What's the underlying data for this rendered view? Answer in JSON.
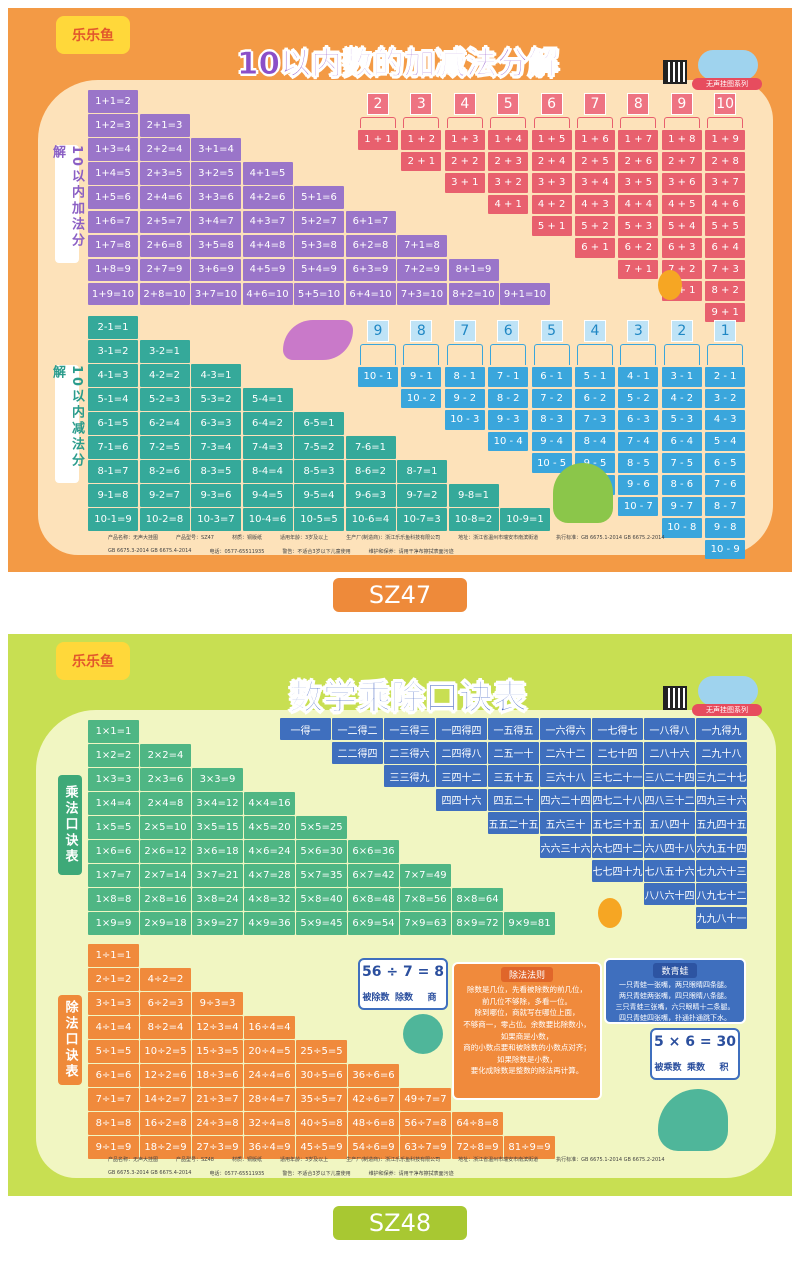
{
  "poster_1": {
    "brand": "乐乐鱼",
    "title": "10以内数的加减法分解",
    "series_badge": "无声挂图系列",
    "addition_label": "10以内加法分解",
    "subtraction_label": "10以内减法分解",
    "addition_rows": [
      [
        "1+1=2"
      ],
      [
        "1+2=3",
        "2+1=3"
      ],
      [
        "1+3=4",
        "2+2=4",
        "3+1=4"
      ],
      [
        "1+4=5",
        "2+3=5",
        "3+2=5",
        "4+1=5"
      ],
      [
        "1+5=6",
        "2+4=6",
        "3+3=6",
        "4+2=6",
        "5+1=6"
      ],
      [
        "1+6=7",
        "2+5=7",
        "3+4=7",
        "4+3=7",
        "5+2=7",
        "6+1=7"
      ],
      [
        "1+7=8",
        "2+6=8",
        "3+5=8",
        "4+4=8",
        "5+3=8",
        "6+2=8",
        "7+1=8"
      ],
      [
        "1+8=9",
        "2+7=9",
        "3+6=9",
        "4+5=9",
        "5+4=9",
        "6+3=9",
        "7+2=9",
        "8+1=9"
      ],
      [
        "1+9=10",
        "2+8=10",
        "3+7=10",
        "4+6=10",
        "5+5=10",
        "6+4=10",
        "7+3=10",
        "8+2=10",
        "9+1=10"
      ]
    ],
    "subtraction_rows": [
      [
        "2-1=1"
      ],
      [
        "3-1=2",
        "3-2=1"
      ],
      [
        "4-1=3",
        "4-2=2",
        "4-3=1"
      ],
      [
        "5-1=4",
        "5-2=3",
        "5-3=2",
        "5-4=1"
      ],
      [
        "6-1=5",
        "6-2=4",
        "6-3=3",
        "6-4=2",
        "6-5=1"
      ],
      [
        "7-1=6",
        "7-2=5",
        "7-3=4",
        "7-4=3",
        "7-5=2",
        "7-6=1"
      ],
      [
        "8-1=7",
        "8-2=6",
        "8-3=5",
        "8-4=4",
        "8-5=3",
        "8-6=2",
        "8-7=1"
      ],
      [
        "9-1=8",
        "9-2=7",
        "9-3=6",
        "9-4=5",
        "9-5=4",
        "9-6=3",
        "9-7=2",
        "9-8=1"
      ],
      [
        "10-1=9",
        "10-2=8",
        "10-3=7",
        "10-4=6",
        "10-5=5",
        "10-6=4",
        "10-7=3",
        "10-8=2",
        "10-9=1"
      ]
    ],
    "addition_decompositions": [
      {
        "number": "2",
        "parts": [
          "1 + 1"
        ]
      },
      {
        "number": "3",
        "parts": [
          "1 + 2",
          "2 + 1"
        ]
      },
      {
        "number": "4",
        "parts": [
          "1 + 3",
          "2 + 2",
          "3 + 1"
        ]
      },
      {
        "number": "5",
        "parts": [
          "1 + 4",
          "2 + 3",
          "3 + 2",
          "4 + 1"
        ]
      },
      {
        "number": "6",
        "parts": [
          "1 + 5",
          "2 + 4",
          "3 + 3",
          "4 + 2",
          "5 + 1"
        ]
      },
      {
        "number": "7",
        "parts": [
          "1 + 6",
          "2 + 5",
          "3 + 4",
          "4 + 3",
          "5 + 2",
          "6 + 1"
        ]
      },
      {
        "number": "8",
        "parts": [
          "1 + 7",
          "2 + 6",
          "3 + 5",
          "4 + 4",
          "5 + 3",
          "6 + 2",
          "7 + 1"
        ]
      },
      {
        "number": "9",
        "parts": [
          "1 + 8",
          "2 + 7",
          "3 + 6",
          "4 + 5",
          "5 + 4",
          "6 + 3",
          "7 + 2",
          "8 + 1"
        ]
      },
      {
        "number": "10",
        "parts": [
          "1 + 9",
          "2 + 8",
          "3 + 7",
          "4 + 6",
          "5 + 5",
          "6 + 4",
          "7 + 3",
          "8 + 2",
          "9 + 1"
        ]
      }
    ],
    "subtraction_decompositions": [
      {
        "number": "9",
        "parts": [
          "10 - 1"
        ]
      },
      {
        "number": "8",
        "parts": [
          "9 - 1",
          "10 - 2"
        ]
      },
      {
        "number": "7",
        "parts": [
          "8 - 1",
          "9 - 2",
          "10 - 3"
        ]
      },
      {
        "number": "6",
        "parts": [
          "7 - 1",
          "8 - 2",
          "9 - 3",
          "10 - 4"
        ]
      },
      {
        "number": "5",
        "parts": [
          "6 - 1",
          "7 - 2",
          "8 - 3",
          "9 - 4",
          "10 - 5"
        ]
      },
      {
        "number": "4",
        "parts": [
          "5 - 1",
          "6 - 2",
          "7 - 3",
          "8 - 4",
          "9 - 5",
          "10 - 6"
        ]
      },
      {
        "number": "3",
        "parts": [
          "4 - 1",
          "5 - 2",
          "6 - 3",
          "7 - 4",
          "8 - 5",
          "9 - 6",
          "10 - 7"
        ]
      },
      {
        "number": "2",
        "parts": [
          "3 - 1",
          "4 - 2",
          "5 - 3",
          "6 - 4",
          "7 - 5",
          "8 - 6",
          "9 - 7",
          "10 - 8"
        ]
      },
      {
        "number": "1",
        "parts": [
          "2 - 1",
          "3 - 2",
          "4 - 3",
          "5 - 4",
          "6 - 5",
          "7 - 6",
          "8 - 7",
          "9 - 8",
          "10 - 9"
        ]
      }
    ],
    "footer": [
      "产品名称：无声大挂图",
      "产品型号：SZ47",
      "材质：铜版纸",
      "适用年龄：3岁及以上",
      "生产厂(制造商)：浙江乐乐鱼科技有限公司",
      "地址：浙江省温州市瑞安市南滨街道",
      "执行标准：GB 6675.1-2014 GB 6675.2-2014",
      "GB 6675.3-2014 GB 6675.4-2014",
      "电话：0577-65511935",
      "警告：不适合3岁以下儿童使用",
      "维护和保养：请用干净布擦拭表面污迹"
    ],
    "model_label": "SZ47"
  },
  "poster_2": {
    "brand": "乐乐鱼",
    "title": "数学乘除口诀表",
    "series_badge": "无声挂图系列",
    "multiplication_label": "乘法口诀表",
    "division_label": "除法口诀表",
    "multiplication_rows": [
      [
        "1×1=1"
      ],
      [
        "1×2=2",
        "2×2=4"
      ],
      [
        "1×3=3",
        "2×3=6",
        "3×3=9"
      ],
      [
        "1×4=4",
        "2×4=8",
        "3×4=12",
        "4×4=16"
      ],
      [
        "1×5=5",
        "2×5=10",
        "3×5=15",
        "4×5=20",
        "5×5=25"
      ],
      [
        "1×6=6",
        "2×6=12",
        "3×6=18",
        "4×6=24",
        "5×6=30",
        "6×6=36"
      ],
      [
        "1×7=7",
        "2×7=14",
        "3×7=21",
        "4×7=28",
        "5×7=35",
        "6×7=42",
        "7×7=49"
      ],
      [
        "1×8=8",
        "2×8=16",
        "3×8=24",
        "4×8=32",
        "5×8=40",
        "6×8=48",
        "7×8=56",
        "8×8=64"
      ],
      [
        "1×9=9",
        "2×9=18",
        "3×9=27",
        "4×9=36",
        "5×9=45",
        "6×9=54",
        "7×9=63",
        "8×9=72",
        "9×9=81"
      ]
    ],
    "mnemonic_rows": [
      [
        "一得一",
        "一二得二",
        "一三得三",
        "一四得四",
        "一五得五",
        "一六得六",
        "一七得七",
        "一八得八",
        "一九得九"
      ],
      [
        "二二得四",
        "二三得六",
        "二四得八",
        "二五一十",
        "二六十二",
        "二七十四",
        "二八十六",
        "二九十八"
      ],
      [
        "三三得九",
        "三四十二",
        "三五十五",
        "三六十八",
        "三七二十一",
        "三八二十四",
        "三九二十七"
      ],
      [
        "四四十六",
        "四五二十",
        "四六二十四",
        "四七二十八",
        "四八三十二",
        "四九三十六"
      ],
      [
        "五五二十五",
        "五六三十",
        "五七三十五",
        "五八四十",
        "五九四十五"
      ],
      [
        "六六三十六",
        "六七四十二",
        "六八四十八",
        "六九五十四"
      ],
      [
        "七七四十九",
        "七八五十六",
        "七九六十三"
      ],
      [
        "八八六十四",
        "八九七十二"
      ],
      [
        "九九八十一"
      ]
    ],
    "division_rows": [
      [
        "1÷1=1"
      ],
      [
        "2÷1=2",
        "4÷2=2"
      ],
      [
        "3÷1=3",
        "6÷2=3",
        "9÷3=3"
      ],
      [
        "4÷1=4",
        "8÷2=4",
        "12÷3=4",
        "16÷4=4"
      ],
      [
        "5÷1=5",
        "10÷2=5",
        "15÷3=5",
        "20÷4=5",
        "25÷5=5"
      ],
      [
        "6÷1=6",
        "12÷2=6",
        "18÷3=6",
        "24÷4=6",
        "30÷5=6",
        "36÷6=6"
      ],
      [
        "7÷1=7",
        "14÷2=7",
        "21÷3=7",
        "28÷4=7",
        "35÷5=7",
        "42÷6=7",
        "49÷7=7"
      ],
      [
        "8÷1=8",
        "16÷2=8",
        "24÷3=8",
        "32÷4=8",
        "40÷5=8",
        "48÷6=8",
        "56÷7=8",
        "64÷8=8"
      ],
      [
        "9÷1=9",
        "18÷2=9",
        "27÷3=9",
        "36÷4=9",
        "45÷5=9",
        "54÷6=9",
        "63÷7=9",
        "72÷8=9",
        "81÷9=9"
      ]
    ],
    "division_example": {
      "equation": "56 ÷ 7 = 8",
      "terms": [
        "被除数",
        "除数",
        "商"
      ]
    },
    "division_rules": {
      "title": "除法法则",
      "lines": [
        "除数是几位，先看被除数的前几位，",
        "前几位不够除，多看一位。",
        "除到哪位，商就写在哪位上面，",
        "不够商一，零占位。余数要比除数小，",
        "如果商是小数，",
        "商的小数点要和被除数的小数点对齐；",
        "如果除数是小数，",
        "要化成除数是整数的除法再计算。"
      ]
    },
    "frog_rhyme": {
      "title": "数青蛙",
      "lines": [
        "一只青蛙一张嘴，两只眼睛四条腿。",
        "两只青蛙两张嘴，四只眼睛八条腿。",
        "三只青蛙三张嘴，六只眼睛十二条腿。",
        "四只青蛙四张嘴，扑通扑通跳下水。"
      ]
    },
    "multiplication_example": {
      "equation": "5 × 6 = 30",
      "terms": [
        "被乘数",
        "乘数",
        "积"
      ]
    },
    "footer": [
      "产品名称：无声大挂图",
      "产品型号：SZ48",
      "材质：铜版纸",
      "适用年龄：3岁及以上",
      "生产厂(制造商)：浙江乐乐鱼科技有限公司",
      "地址：浙江省温州市瑞安市南滨街道",
      "执行标准：GB 6675.1-2014 GB 6675.2-2014",
      "GB 6675.3-2014 GB 6675.4-2014",
      "电话：0577-65511935",
      "警告：不适合3岁以下儿童使用",
      "维护和保养：请用干净布擦拭表面污迹"
    ],
    "model_label": "SZ48"
  }
}
